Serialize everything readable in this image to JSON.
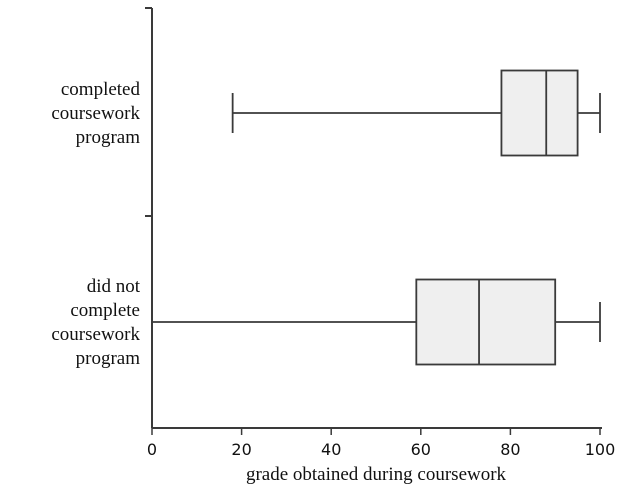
{
  "chart_data": {
    "type": "boxplot",
    "orientation": "horizontal",
    "title": "",
    "xlabel": "grade obtained during coursework",
    "ylabel": "",
    "xlim": [
      0,
      100
    ],
    "xticks": [
      0,
      20,
      40,
      60,
      80,
      100
    ],
    "grid": false,
    "legend": "none",
    "categories": [
      {
        "label": [
          "completed",
          "coursework",
          "program"
        ],
        "min": 18,
        "q1": 78,
        "median": 88,
        "q3": 95,
        "max": 100
      },
      {
        "label": [
          "did not",
          "complete",
          "coursework",
          "program"
        ],
        "min": 0,
        "q1": 59,
        "median": 73,
        "q3": 90,
        "max": 100
      }
    ],
    "colors": {
      "box_fill": "#efefef",
      "stroke": "#3a3a3a"
    }
  }
}
